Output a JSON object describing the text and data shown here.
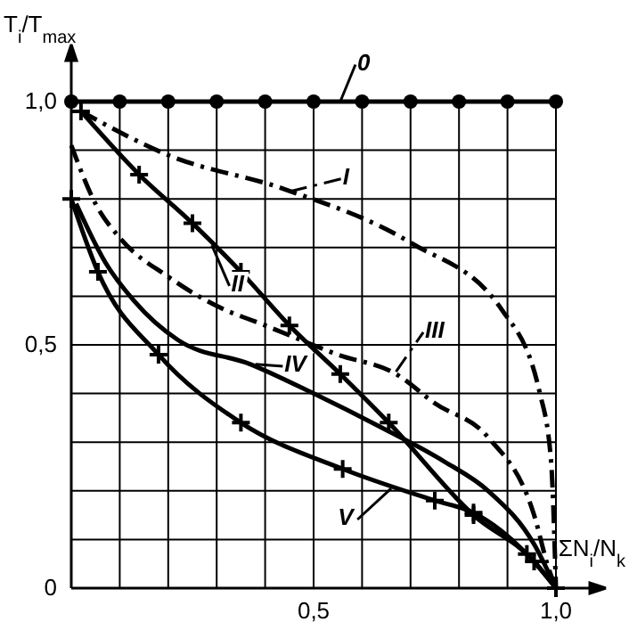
{
  "chart_data": {
    "type": "line",
    "xlabel": "ΣN$_{i}$/N$_{k}$",
    "ylabel": "T$_{i}$/T$_{max}$",
    "xlim": [
      0,
      1.0
    ],
    "ylim": [
      0,
      1.0
    ],
    "xticks": [
      {
        "value": 0.1,
        "label": null
      },
      {
        "value": 0.2,
        "label": null
      },
      {
        "value": 0.3,
        "label": null
      },
      {
        "value": 0.4,
        "label": null
      },
      {
        "value": 0.5,
        "label": "0,5"
      },
      {
        "value": 0.6,
        "label": null
      },
      {
        "value": 0.7,
        "label": null
      },
      {
        "value": 0.8,
        "label": null
      },
      {
        "value": 0.9,
        "label": null
      },
      {
        "value": 1.0,
        "label": "1,0"
      }
    ],
    "yticks": [
      0,
      {
        "value": 0.1,
        "label": null
      },
      {
        "value": 0.2,
        "label": null
      },
      {
        "value": 0.3,
        "label": null
      },
      {
        "value": 0.4,
        "label": null
      },
      {
        "value": 0.5,
        "label": "0,5"
      },
      {
        "value": 0.6,
        "label": null
      },
      {
        "value": 0.7,
        "label": null
      },
      {
        "value": 0.8,
        "label": null
      },
      {
        "value": 0.9,
        "label": null
      },
      {
        "value": 1.0,
        "label": "1,0"
      }
    ],
    "grid": true,
    "legend": "right",
    "series": [
      {
        "name": "0",
        "color": "#000000",
        "marker": "circle",
        "line_style": "solid",
        "x": [
          0,
          0.1,
          0.2,
          0.3,
          0.4,
          0.5,
          0.6,
          0.7,
          0.8,
          0.9,
          1.0
        ],
        "values": [
          1,
          1,
          1,
          1,
          1,
          1,
          1,
          1,
          1,
          1,
          1
        ]
      },
      {
        "name": "I",
        "color": "#000000",
        "line_style": "dashed",
        "x": [
          0.02,
          0.2,
          0.44,
          0.7,
          0.89,
          0.967,
          0.99,
          1.0
        ],
        "values": [
          0.98,
          0.89,
          0.82,
          0.71,
          0.57,
          0.4,
          0.26,
          0
        ]
      },
      {
        "name": "II",
        "color": "#000000",
        "marker": "cross",
        "line_style": "solid",
        "x": [
          0.02,
          0.14,
          0.25,
          0.35,
          0.45,
          0.555,
          0.655,
          0.83,
          0.955,
          1.0
        ],
        "values": [
          0.98,
          0.85,
          0.75,
          0.65,
          0.54,
          0.44,
          0.34,
          0.15,
          0.055,
          0
        ]
      },
      {
        "name": "III",
        "color": "#000000",
        "line_style": "dashed",
        "x": [
          0,
          0.05,
          0.1,
          0.2,
          0.3,
          0.4,
          0.55,
          0.67,
          0.75,
          0.86,
          0.955,
          0.985,
          1.0
        ],
        "values": [
          0.91,
          0.79,
          0.72,
          0.64,
          0.58,
          0.54,
          0.48,
          0.44,
          0.38,
          0.31,
          0.15,
          0.04,
          0
        ]
      },
      {
        "name": "IV",
        "color": "#000000",
        "line_style": "solid",
        "x": [
          0.01,
          0.07,
          0.13,
          0.22,
          0.37,
          0.5,
          0.64,
          0.77,
          0.86,
          0.955,
          1.0
        ],
        "values": [
          0.79,
          0.67,
          0.59,
          0.51,
          0.46,
          0.4,
          0.33,
          0.26,
          0.2,
          0.09,
          0
        ]
      },
      {
        "name": "V",
        "color": "#000000",
        "marker": "cross",
        "line_style": "solid",
        "x": [
          0,
          0.055,
          0.18,
          0.35,
          0.56,
          0.75,
          0.83,
          0.94,
          1.0
        ],
        "values": [
          0.8,
          0.65,
          0.48,
          0.34,
          0.245,
          0.18,
          0.155,
          0.07,
          0
        ]
      }
    ]
  }
}
